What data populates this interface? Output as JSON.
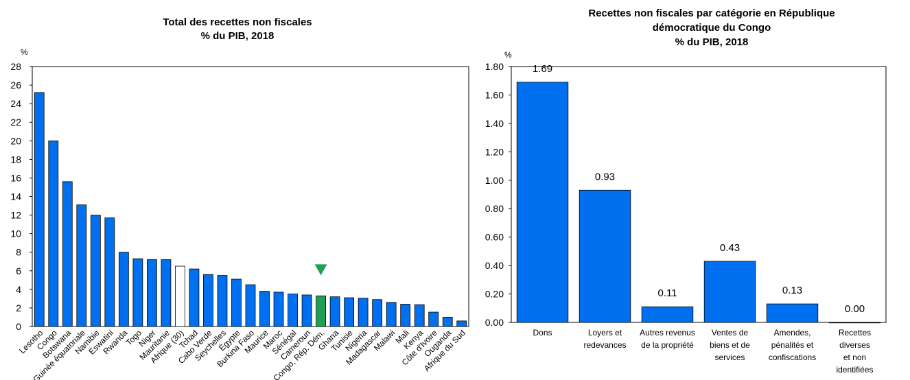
{
  "chart_data": [
    {
      "type": "bar",
      "title_lines": [
        "Total des recettes non fiscales",
        "% du PIB, 2018"
      ],
      "ylabel": "%",
      "ylim": [
        0,
        28
      ],
      "yticks": [
        "0",
        "2",
        "4",
        "6",
        "8",
        "10",
        "12",
        "14",
        "16",
        "18",
        "20",
        "22",
        "24",
        "26",
        "28"
      ],
      "grid": false,
      "colors": {
        "default": "#0070F0",
        "highlight": "#1FA055",
        "average": "#FFFFFF",
        "marker": "#1FA055"
      },
      "categories": [
        "Lesotho",
        "Congo",
        "Botswana",
        "Guinée équatoriale",
        "Namibie",
        "Eswatini",
        "Rwanda",
        "Togo",
        "Niger",
        "Mauritanie",
        "Afrique (30)",
        "Tchad",
        "Cabo Verde",
        "Seychelles",
        "Égypte",
        "Burkina Faso",
        "Maurice",
        "Maroc",
        "Sénégal",
        "Cameroun",
        "Congo, Rép. Dém.",
        "Ghana",
        "Tunisie",
        "Nigeria",
        "Madagascar",
        "Malawi",
        "Mali",
        "Kenya",
        "Côte d'Ivoire",
        "Ouganda",
        "Afrique du Sud"
      ],
      "values": [
        25.2,
        20.0,
        15.6,
        13.1,
        12.0,
        11.7,
        8.0,
        7.3,
        7.2,
        7.2,
        6.5,
        6.2,
        5.6,
        5.5,
        5.1,
        4.5,
        3.8,
        3.7,
        3.5,
        3.4,
        3.3,
        3.2,
        3.1,
        3.05,
        2.9,
        2.6,
        2.4,
        2.35,
        1.55,
        1.0,
        0.6
      ],
      "highlight_category": "Congo, Rép. Dém.",
      "average_category": "Afrique (30)"
    },
    {
      "type": "bar",
      "title_lines": [
        "Recettes non fiscales par catégorie en République",
        "démocratique du Congo",
        "% du PIB, 2018"
      ],
      "ylabel": "%",
      "ylim": [
        0,
        1.8
      ],
      "yticks": [
        "0.00",
        "0.20",
        "0.40",
        "0.60",
        "0.80",
        "1.00",
        "1.20",
        "1.40",
        "1.60",
        "1.80"
      ],
      "grid": false,
      "colors": {
        "default": "#0070F0"
      },
      "categories": [
        [
          "Dons"
        ],
        [
          "Loyers et",
          "redevances"
        ],
        [
          "Autres revenus",
          "de la propriété"
        ],
        [
          "Ventes de",
          "biens et de",
          "services"
        ],
        [
          "Amendes,",
          "pénalités et",
          "confiscations"
        ],
        [
          "Recettes",
          "diverses",
          "et non",
          "identifiées"
        ]
      ],
      "values": [
        1.69,
        0.93,
        0.11,
        0.43,
        0.13,
        0.0
      ],
      "data_labels": [
        "1.69",
        "0.93",
        "0.11",
        "0.43",
        "0.13",
        "0.00"
      ]
    }
  ]
}
